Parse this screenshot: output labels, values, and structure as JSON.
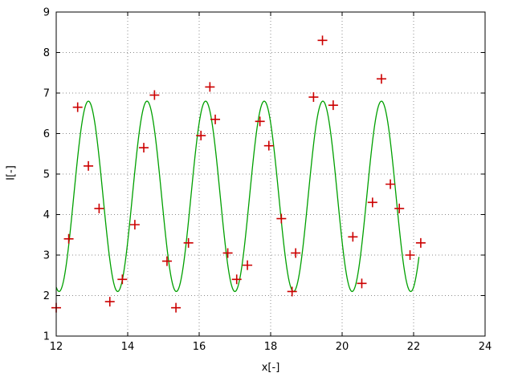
{
  "window": {
    "background": "#ffffff"
  },
  "chart_data": {
    "type": "scatter",
    "title": "",
    "xlabel": "x[-]",
    "ylabel": "I[-]",
    "xlim": [
      12,
      24
    ],
    "ylim": [
      1,
      9
    ],
    "xticks": [
      12,
      14,
      16,
      18,
      20,
      22,
      24
    ],
    "yticks": [
      1,
      2,
      3,
      4,
      5,
      6,
      7,
      8,
      9
    ],
    "grid": true,
    "legend": "none",
    "colors": {
      "curve": "#00a000",
      "points": "#cc0000",
      "axis": "#000000",
      "grid": "#8c8c8c"
    },
    "series": [
      {
        "name": "fitted-curve",
        "type": "line",
        "color_key": "curve",
        "model": "y = offset + amplitude * cos(2*pi*(x - peak_x)/period)",
        "offset": 4.45,
        "amplitude": 2.35,
        "period": 1.64,
        "peak_x": 12.9,
        "x_start": 12.0,
        "x_end": 22.15
      },
      {
        "name": "data-points",
        "type": "scatter",
        "marker": "plus",
        "color_key": "points",
        "points": [
          [
            12.0,
            1.7
          ],
          [
            12.35,
            3.4
          ],
          [
            12.6,
            6.65
          ],
          [
            12.9,
            5.2
          ],
          [
            13.2,
            4.15
          ],
          [
            13.5,
            1.85
          ],
          [
            13.85,
            2.4
          ],
          [
            14.2,
            3.75
          ],
          [
            14.45,
            5.65
          ],
          [
            14.75,
            6.95
          ],
          [
            15.1,
            2.85
          ],
          [
            15.35,
            1.7
          ],
          [
            15.7,
            3.3
          ],
          [
            16.05,
            5.95
          ],
          [
            16.3,
            7.15
          ],
          [
            16.45,
            6.35
          ],
          [
            16.8,
            3.05
          ],
          [
            17.05,
            2.4
          ],
          [
            17.35,
            2.75
          ],
          [
            17.7,
            6.3
          ],
          [
            17.95,
            5.7
          ],
          [
            18.3,
            3.9
          ],
          [
            18.6,
            2.1
          ],
          [
            18.7,
            3.05
          ],
          [
            19.2,
            6.9
          ],
          [
            19.45,
            8.3
          ],
          [
            19.75,
            6.7
          ],
          [
            20.3,
            3.45
          ],
          [
            20.55,
            2.3
          ],
          [
            20.85,
            4.3
          ],
          [
            21.1,
            7.35
          ],
          [
            21.35,
            4.75
          ],
          [
            21.6,
            4.15
          ],
          [
            21.9,
            3.0
          ],
          [
            22.2,
            3.3
          ]
        ]
      }
    ]
  }
}
